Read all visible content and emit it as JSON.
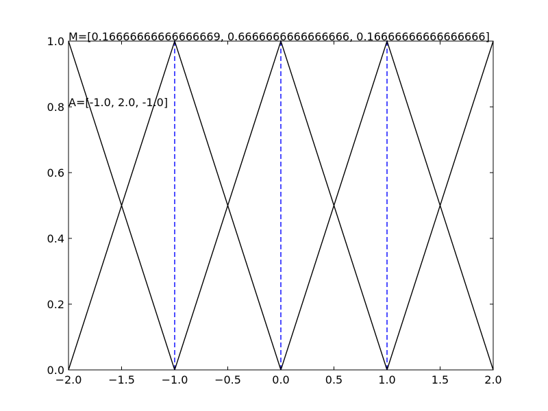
{
  "chart_data": {
    "type": "line",
    "title": "",
    "xlabel": "",
    "ylabel": "",
    "xlim": [
      -2.0,
      2.0
    ],
    "ylim": [
      0.0,
      1.0
    ],
    "xticks": [
      -2.0,
      -1.5,
      -1.0,
      -0.5,
      0.0,
      0.5,
      1.0,
      1.5,
      2.0
    ],
    "xtick_labels": [
      "−2.0",
      "−1.5",
      "−1.0",
      "−0.5",
      "0.0",
      "0.5",
      "1.0",
      "1.5",
      "2.0"
    ],
    "yticks": [
      0.0,
      0.2,
      0.4,
      0.6,
      0.8,
      1.0
    ],
    "ytick_labels": [
      "0.0",
      "0.2",
      "0.4",
      "0.6",
      "0.8",
      "1.0"
    ],
    "grid": false,
    "series": [
      {
        "color": "#000000",
        "style": "solid",
        "x": [
          -2.0,
          -1.0
        ],
        "y": [
          1.0,
          0.0
        ]
      },
      {
        "color": "#000000",
        "style": "solid",
        "x": [
          -2.0,
          -1.0,
          0.0
        ],
        "y": [
          0.0,
          1.0,
          0.0
        ]
      },
      {
        "color": "#000000",
        "style": "solid",
        "x": [
          -1.0,
          0.0,
          1.0
        ],
        "y": [
          0.0,
          1.0,
          0.0
        ]
      },
      {
        "color": "#000000",
        "style": "solid",
        "x": [
          0.0,
          1.0,
          2.0
        ],
        "y": [
          0.0,
          1.0,
          0.0
        ]
      },
      {
        "color": "#000000",
        "style": "solid",
        "x": [
          1.0,
          2.0
        ],
        "y": [
          0.0,
          1.0
        ]
      },
      {
        "color": "#0000ff",
        "style": "dashed",
        "x": [
          -1.0,
          -1.0
        ],
        "y": [
          0.0,
          1.0
        ]
      },
      {
        "color": "#0000ff",
        "style": "dashed",
        "x": [
          0.0,
          0.0
        ],
        "y": [
          0.0,
          1.0
        ]
      },
      {
        "color": "#0000ff",
        "style": "dashed",
        "x": [
          1.0,
          1.0
        ],
        "y": [
          0.0,
          1.0
        ]
      }
    ],
    "annotations": [
      {
        "text": "M=[0.16666666666666669, 0.6666666666666666, 0.16666666666666666]",
        "x": -2.0,
        "y": 1.0
      },
      {
        "text": "A=[-1.0, 2.0, -1.0]",
        "x": -2.0,
        "y": 0.8
      }
    ]
  }
}
